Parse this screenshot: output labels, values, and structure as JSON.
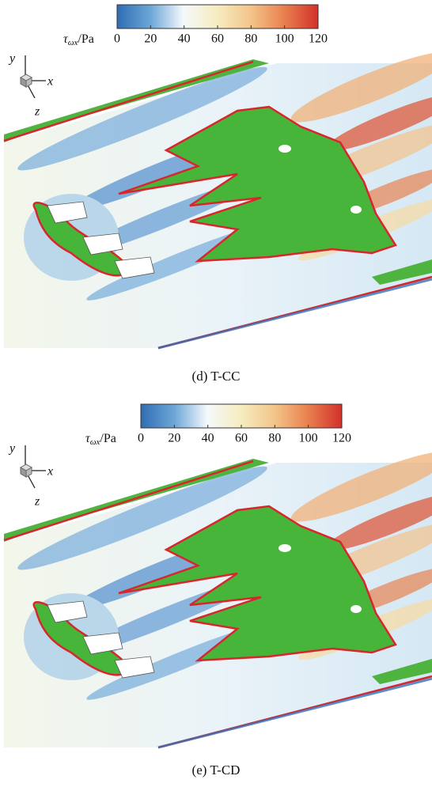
{
  "panels": [
    {
      "colorbar": {
        "symbol": "τ",
        "subscript": "ωx",
        "unit": "/Pa",
        "lim": [
          0,
          120
        ],
        "ticks": [
          0,
          20,
          40,
          60,
          80,
          100,
          120
        ]
      },
      "axes": {
        "y": "y",
        "x": "x",
        "z": "z"
      },
      "caption": "(d) T-CC"
    },
    {
      "colorbar": {
        "symbol": "τ",
        "subscript": "ωx",
        "unit": "/Pa",
        "lim": [
          0,
          120
        ],
        "ticks": [
          0,
          20,
          40,
          60,
          80,
          100,
          120
        ]
      },
      "axes": {
        "y": "y",
        "x": "x",
        "z": "z"
      },
      "caption": "(e) T-CD"
    }
  ]
}
